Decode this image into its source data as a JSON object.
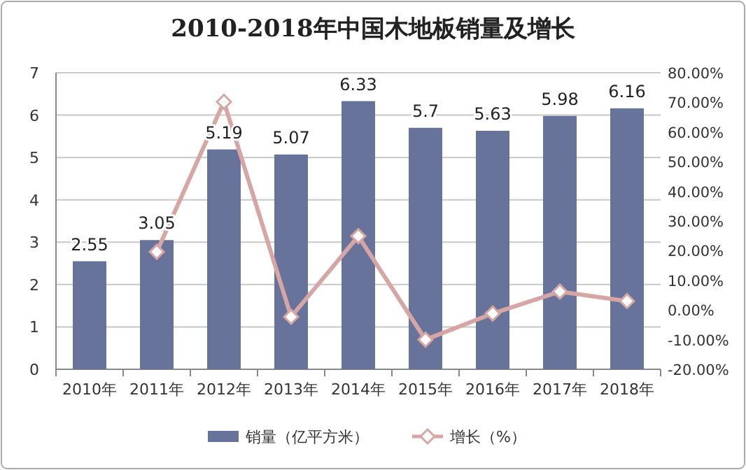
{
  "chart_data": {
    "type": "bar",
    "title": "2010-2018年中国木地板销量及增长",
    "categories": [
      "2010年",
      "2011年",
      "2012年",
      "2013年",
      "2014年",
      "2015年",
      "2016年",
      "2017年",
      "2018年"
    ],
    "series": [
      {
        "name": "销量（亿平方米）",
        "color": "#67739b",
        "values": [
          2.55,
          3.05,
          5.19,
          5.07,
          6.33,
          5.7,
          5.63,
          5.98,
          6.16
        ],
        "value_labels": [
          "2.55",
          "3.05",
          "5.19",
          "5.07",
          "6.33",
          "5.7",
          "5.63",
          "5.98",
          "6.16"
        ]
      },
      {
        "name": "增长（%）",
        "type": "line",
        "axis": "y2",
        "color": "#d5a6a3",
        "marker": "diamond",
        "values": [
          null,
          19.6,
          70.2,
          -2.3,
          24.9,
          -10.0,
          -1.2,
          6.2,
          3.0
        ]
      }
    ],
    "ylim": [
      0,
      7
    ],
    "yticks": [
      0,
      1,
      2,
      3,
      4,
      5,
      6,
      7
    ],
    "y2lim": [
      -20,
      80
    ],
    "y2ticks": [
      {
        "value": -20,
        "label": "-20.00%"
      },
      {
        "value": -10,
        "label": "-10.00%"
      },
      {
        "value": 0,
        "label": "0.00%"
      },
      {
        "value": 10,
        "label": "10.00%"
      },
      {
        "value": 20,
        "label": "20.00%"
      },
      {
        "value": 30,
        "label": "30.00%"
      },
      {
        "value": 40,
        "label": "40.00%"
      },
      {
        "value": 50,
        "label": "50.00%"
      },
      {
        "value": 60,
        "label": "60.00%"
      },
      {
        "value": 70,
        "label": "70.00%"
      },
      {
        "value": 80,
        "label": "80.00%"
      }
    ],
    "grid": "y",
    "legend": "bottom"
  }
}
